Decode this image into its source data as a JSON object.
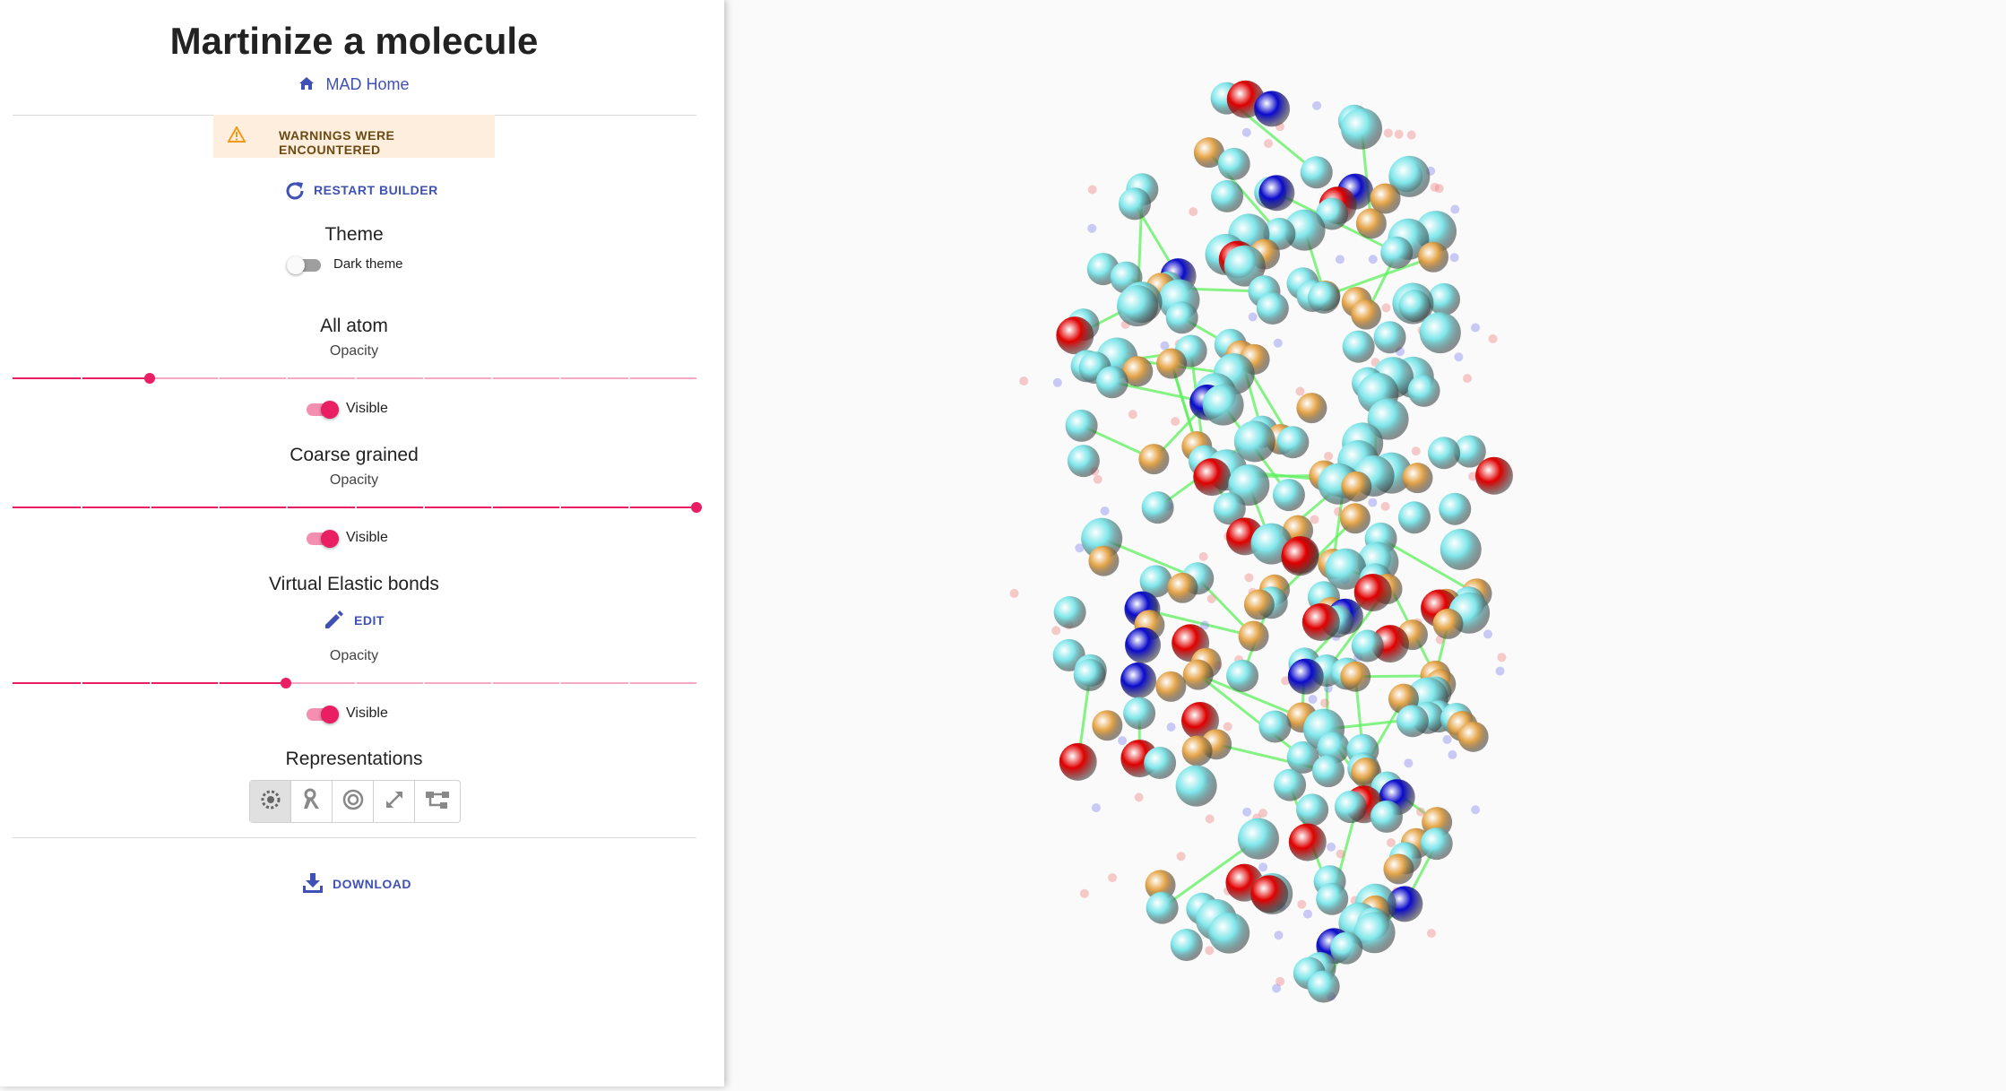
{
  "sidebar": {
    "title": "Martinize a molecule",
    "home_link": "MAD Home",
    "warning": "Warnings were encountered",
    "restart": "Restart builder",
    "theme": {
      "title": "Theme",
      "dark_label": "Dark theme",
      "dark_on": false
    },
    "all_atom": {
      "title": "All atom",
      "opacity_label": "Opacity",
      "opacity": 0.2,
      "visible_label": "Visible",
      "visible": true
    },
    "coarse_grained": {
      "title": "Coarse grained",
      "opacity_label": "Opacity",
      "opacity": 1.0,
      "visible_label": "Visible",
      "visible": true
    },
    "elastic": {
      "title": "Virtual Elastic bonds",
      "edit_label": "Edit",
      "opacity_label": "Opacity",
      "opacity": 0.4,
      "visible_label": "Visible",
      "visible": true
    },
    "representations": {
      "title": "Representations",
      "icons": [
        "ball-and-stick-icon",
        "cartoon-ribbon-icon",
        "spacefill-target-icon",
        "expand-arrows-icon",
        "hierarchy-tree-icon"
      ],
      "active": 0
    },
    "download": "Download"
  },
  "colors": {
    "accent": "#3f51b5",
    "slider": "#e91e63",
    "warning_bg": "#fdeedd",
    "cyan_bead": "#7fe6ea",
    "gold_bead": "#e6a64a",
    "red_bead": "#e00000",
    "blue_bead": "#0a0acc",
    "elastic_bond": "#5cf05c"
  }
}
